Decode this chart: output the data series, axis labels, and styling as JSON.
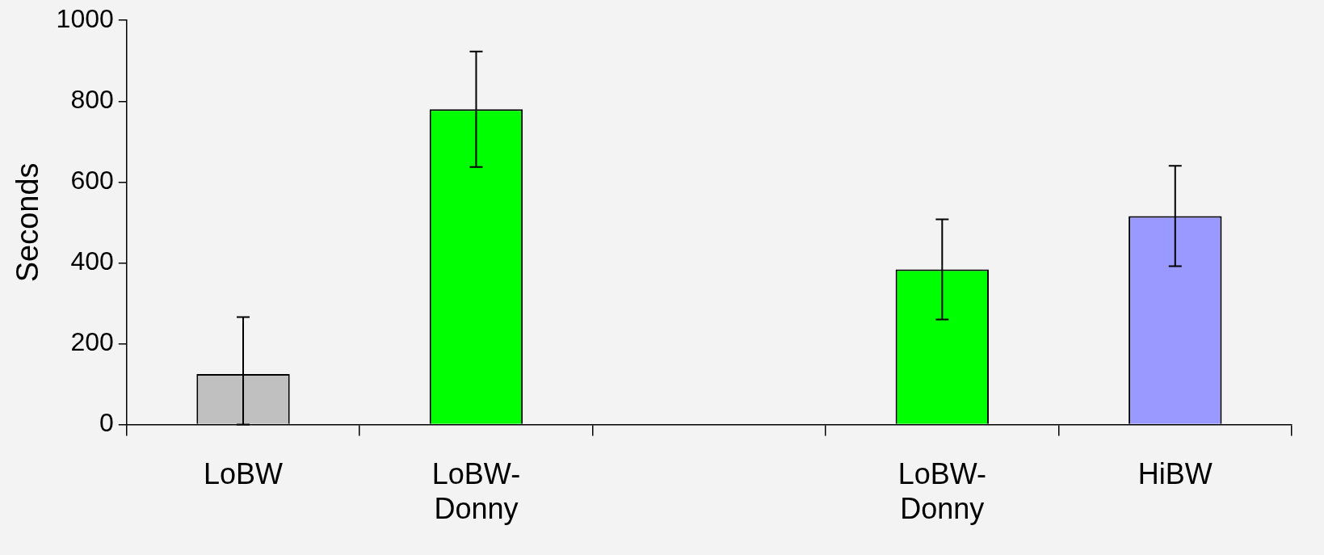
{
  "chart_data": {
    "type": "bar",
    "ylabel": "Seconds",
    "categories": [
      "LoBW",
      "LoBW-Donny",
      null,
      "LoBW-Donny",
      "HiBW"
    ],
    "values": [
      125,
      780,
      null,
      384,
      516
    ],
    "colors": [
      "#c0c0c0",
      "#00ff00",
      "#00ff00",
      "#00ff00",
      "#9999ff"
    ],
    "errors": [
      [
        0,
        266
      ],
      143,
      null,
      124,
      124
    ],
    "ylim": [
      0,
      1000
    ],
    "yticks": [
      0,
      200,
      400,
      600,
      800,
      1000
    ],
    "grid": false,
    "legend": false
  }
}
